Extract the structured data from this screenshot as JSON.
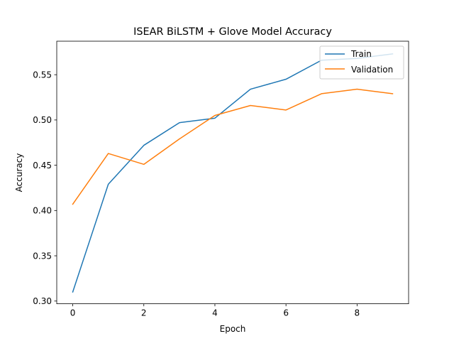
{
  "chart_data": {
    "type": "line",
    "title": "ISEAR BiLSTM + Glove Model Accuracy",
    "xlabel": "Epoch",
    "ylabel": "Accuracy",
    "xlim": [
      -0.45,
      9.45
    ],
    "ylim": [
      0.297,
      0.587
    ],
    "xticks": [
      0,
      2,
      4,
      6,
      8
    ],
    "yticks": [
      0.3,
      0.35,
      0.4,
      0.45,
      0.5,
      0.55
    ],
    "ytick_labels": [
      "0.30",
      "0.35",
      "0.40",
      "0.45",
      "0.50",
      "0.55"
    ],
    "grid": false,
    "legend_position": "top-right",
    "x": [
      0,
      1,
      2,
      3,
      4,
      5,
      6,
      7,
      8,
      9
    ],
    "series": [
      {
        "name": "Train",
        "color": "#1f77b4",
        "values": [
          0.31,
          0.429,
          0.472,
          0.497,
          0.502,
          0.534,
          0.545,
          0.566,
          0.568,
          0.573
        ]
      },
      {
        "name": "Validation",
        "color": "#ff7f0e",
        "values": [
          0.407,
          0.463,
          0.451,
          0.479,
          0.505,
          0.516,
          0.511,
          0.529,
          0.534,
          0.529
        ]
      }
    ]
  }
}
